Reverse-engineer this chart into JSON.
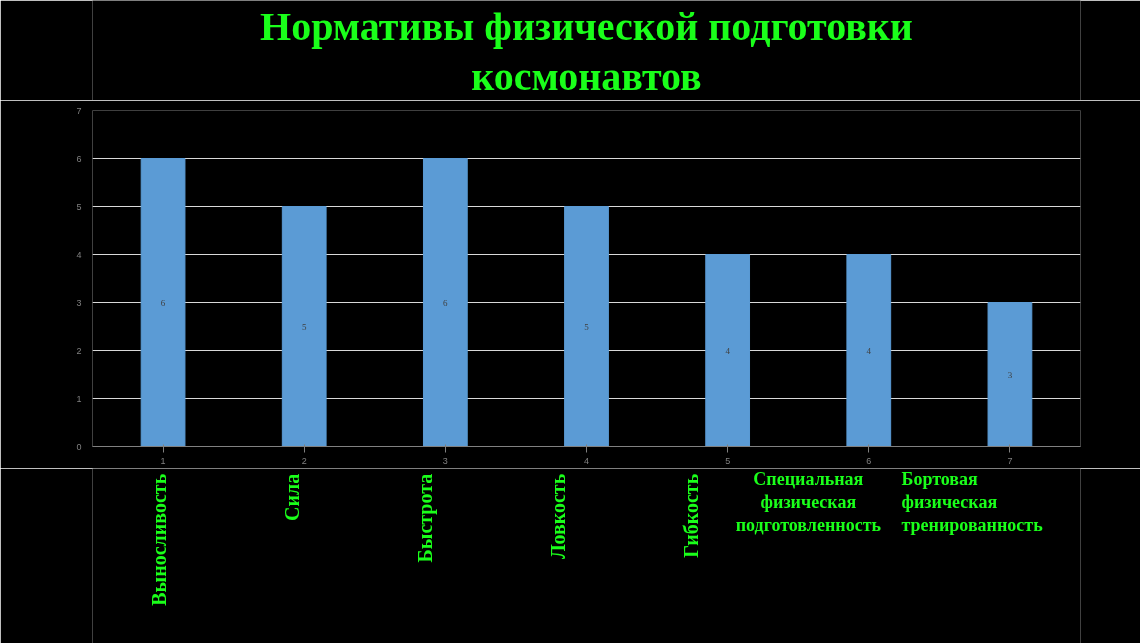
{
  "chart_data": {
    "type": "bar",
    "title": "Нормативы физической подготовки\nкосмонавтов",
    "categories": [
      "1",
      "2",
      "3",
      "4",
      "5",
      "6",
      "7"
    ],
    "values": [
      6,
      5,
      6,
      5,
      4,
      4,
      3
    ],
    "color": "#5b9bd5",
    "data_labels": true,
    "ylim": [
      0,
      7
    ],
    "yticks": [
      0,
      1,
      2,
      3,
      4,
      5,
      6,
      7
    ],
    "grid": "y",
    "annotations": [
      "Выносливость",
      "Сила",
      "Быстрота",
      "Ловкость",
      "Гибкость",
      "Специальная\nфизическая\nподготовленность",
      "Бортовая\nфизическая\nтренированность"
    ]
  }
}
